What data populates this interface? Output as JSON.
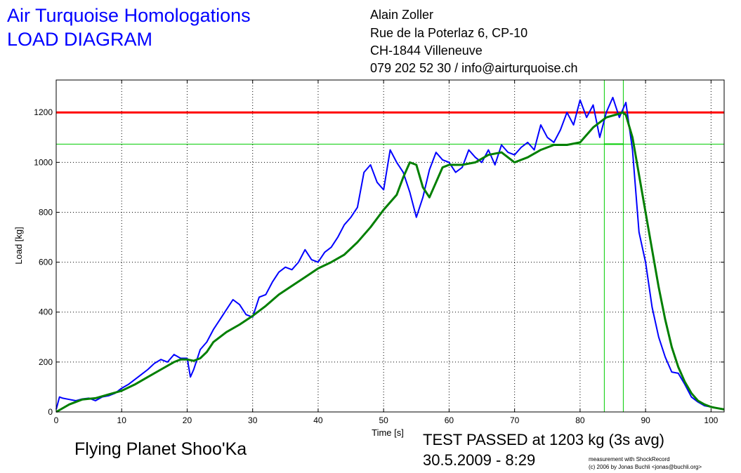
{
  "header": {
    "title_line1": "Air Turquoise Homologations",
    "title_line2": "LOAD DIAGRAM"
  },
  "contact": {
    "name": "Alain Zoller",
    "street": "Rue de la Poterlaz 6, CP-10",
    "city": "CH-1844 Villeneuve",
    "phone_email": "079 202 52 30 / info@airturquoise.ch"
  },
  "footer": {
    "model": "Flying Planet Shoo'Ka",
    "result": "TEST PASSED at 1203 kg (3s avg)",
    "datetime": "30.5.2009 - 8:29",
    "credit_line1": "measurement with ShockRecord",
    "credit_line2": "(c) 2006 by Jonas Buchli <jonas@buchli.org>"
  },
  "colors": {
    "raw": "#0000ff",
    "avg": "#007f00",
    "limit": "#ff0000",
    "marker": "#00cc00",
    "title": "#0000ff"
  },
  "chart_data": {
    "type": "line",
    "title": "",
    "xlabel": "Time [s]",
    "ylabel": "Load [kg]",
    "xlim": [
      0,
      102
    ],
    "ylim": [
      0,
      1330
    ],
    "x_ticks": [
      0,
      10,
      20,
      30,
      40,
      50,
      60,
      70,
      80,
      90,
      100
    ],
    "y_ticks": [
      0,
      200,
      400,
      600,
      800,
      1000,
      1200
    ],
    "grid": true,
    "reference_lines": [
      {
        "axis": "y",
        "value": 1200,
        "color": "#ff0000"
      },
      {
        "axis": "y",
        "value": 1073,
        "color": "#00cc00"
      },
      {
        "axis": "x",
        "value": 83.7,
        "color": "#00cc00"
      },
      {
        "axis": "x",
        "value": 86.6,
        "color": "#00cc00"
      }
    ],
    "avg_window_marker": {
      "x": [
        83.7,
        86.6
      ],
      "y": 1073
    },
    "series": [
      {
        "role": "raw",
        "color": "#0000ff",
        "x": [
          0,
          0.5,
          1,
          2,
          3,
          4,
          5,
          6,
          7,
          8,
          9,
          10,
          11,
          12,
          13,
          14,
          15,
          16,
          17,
          18,
          19,
          20,
          20.5,
          21,
          22,
          23,
          24,
          25,
          26,
          27,
          28,
          29,
          30,
          31,
          32,
          33,
          34,
          35,
          36,
          37,
          38,
          39,
          40,
          41,
          42,
          43,
          44,
          45,
          46,
          47,
          48,
          49,
          50,
          51,
          52,
          53,
          54,
          55,
          56,
          57,
          58,
          59,
          60,
          61,
          62,
          63,
          64,
          65,
          66,
          67,
          68,
          69,
          70,
          71,
          72,
          73,
          74,
          75,
          76,
          77,
          78,
          79,
          80,
          81,
          82,
          83,
          84,
          85,
          86,
          87,
          88,
          89,
          90,
          91,
          92,
          93,
          94,
          95,
          96,
          97,
          98,
          99,
          100,
          101,
          102
        ],
        "y": [
          10,
          60,
          55,
          50,
          45,
          52,
          55,
          45,
          60,
          65,
          75,
          95,
          110,
          130,
          150,
          170,
          195,
          210,
          200,
          230,
          215,
          215,
          140,
          170,
          250,
          280,
          330,
          370,
          410,
          450,
          430,
          390,
          380,
          460,
          470,
          520,
          560,
          580,
          570,
          600,
          650,
          610,
          600,
          640,
          660,
          700,
          750,
          780,
          820,
          960,
          990,
          920,
          890,
          1050,
          1000,
          960,
          880,
          780,
          860,
          970,
          1040,
          1010,
          1000,
          960,
          980,
          1050,
          1020,
          1000,
          1050,
          990,
          1070,
          1040,
          1030,
          1060,
          1080,
          1050,
          1150,
          1100,
          1080,
          1130,
          1200,
          1150,
          1250,
          1180,
          1230,
          1100,
          1200,
          1260,
          1180,
          1240,
          1050,
          720,
          600,
          420,
          300,
          220,
          160,
          155,
          110,
          60,
          40,
          25,
          20,
          15,
          10
        ]
      },
      {
        "role": "avg",
        "color": "#007f00",
        "x": [
          0,
          2,
          4,
          6,
          8,
          10,
          12,
          14,
          16,
          18,
          19,
          20,
          21,
          22,
          23,
          24,
          26,
          28,
          30,
          32,
          34,
          36,
          38,
          40,
          42,
          44,
          46,
          48,
          50,
          52,
          53,
          54,
          55,
          56,
          57,
          58,
          59,
          60,
          62,
          64,
          66,
          68,
          70,
          72,
          74,
          76,
          78,
          80,
          82,
          84,
          86,
          86.5,
          87,
          88,
          89,
          90,
          91,
          92,
          93,
          94,
          95,
          96,
          97,
          98,
          99,
          100,
          101,
          102
        ],
        "y": [
          0,
          30,
          50,
          55,
          70,
          85,
          110,
          140,
          170,
          200,
          210,
          210,
          205,
          215,
          240,
          280,
          320,
          350,
          385,
          425,
          470,
          505,
          540,
          575,
          600,
          630,
          680,
          740,
          810,
          870,
          940,
          1000,
          990,
          900,
          860,
          920,
          980,
          990,
          990,
          1000,
          1030,
          1040,
          1000,
          1020,
          1050,
          1070,
          1070,
          1080,
          1140,
          1180,
          1195,
          1200,
          1190,
          1100,
          950,
          800,
          650,
          500,
          370,
          260,
          180,
          120,
          75,
          45,
          30,
          20,
          15,
          10
        ]
      }
    ]
  }
}
